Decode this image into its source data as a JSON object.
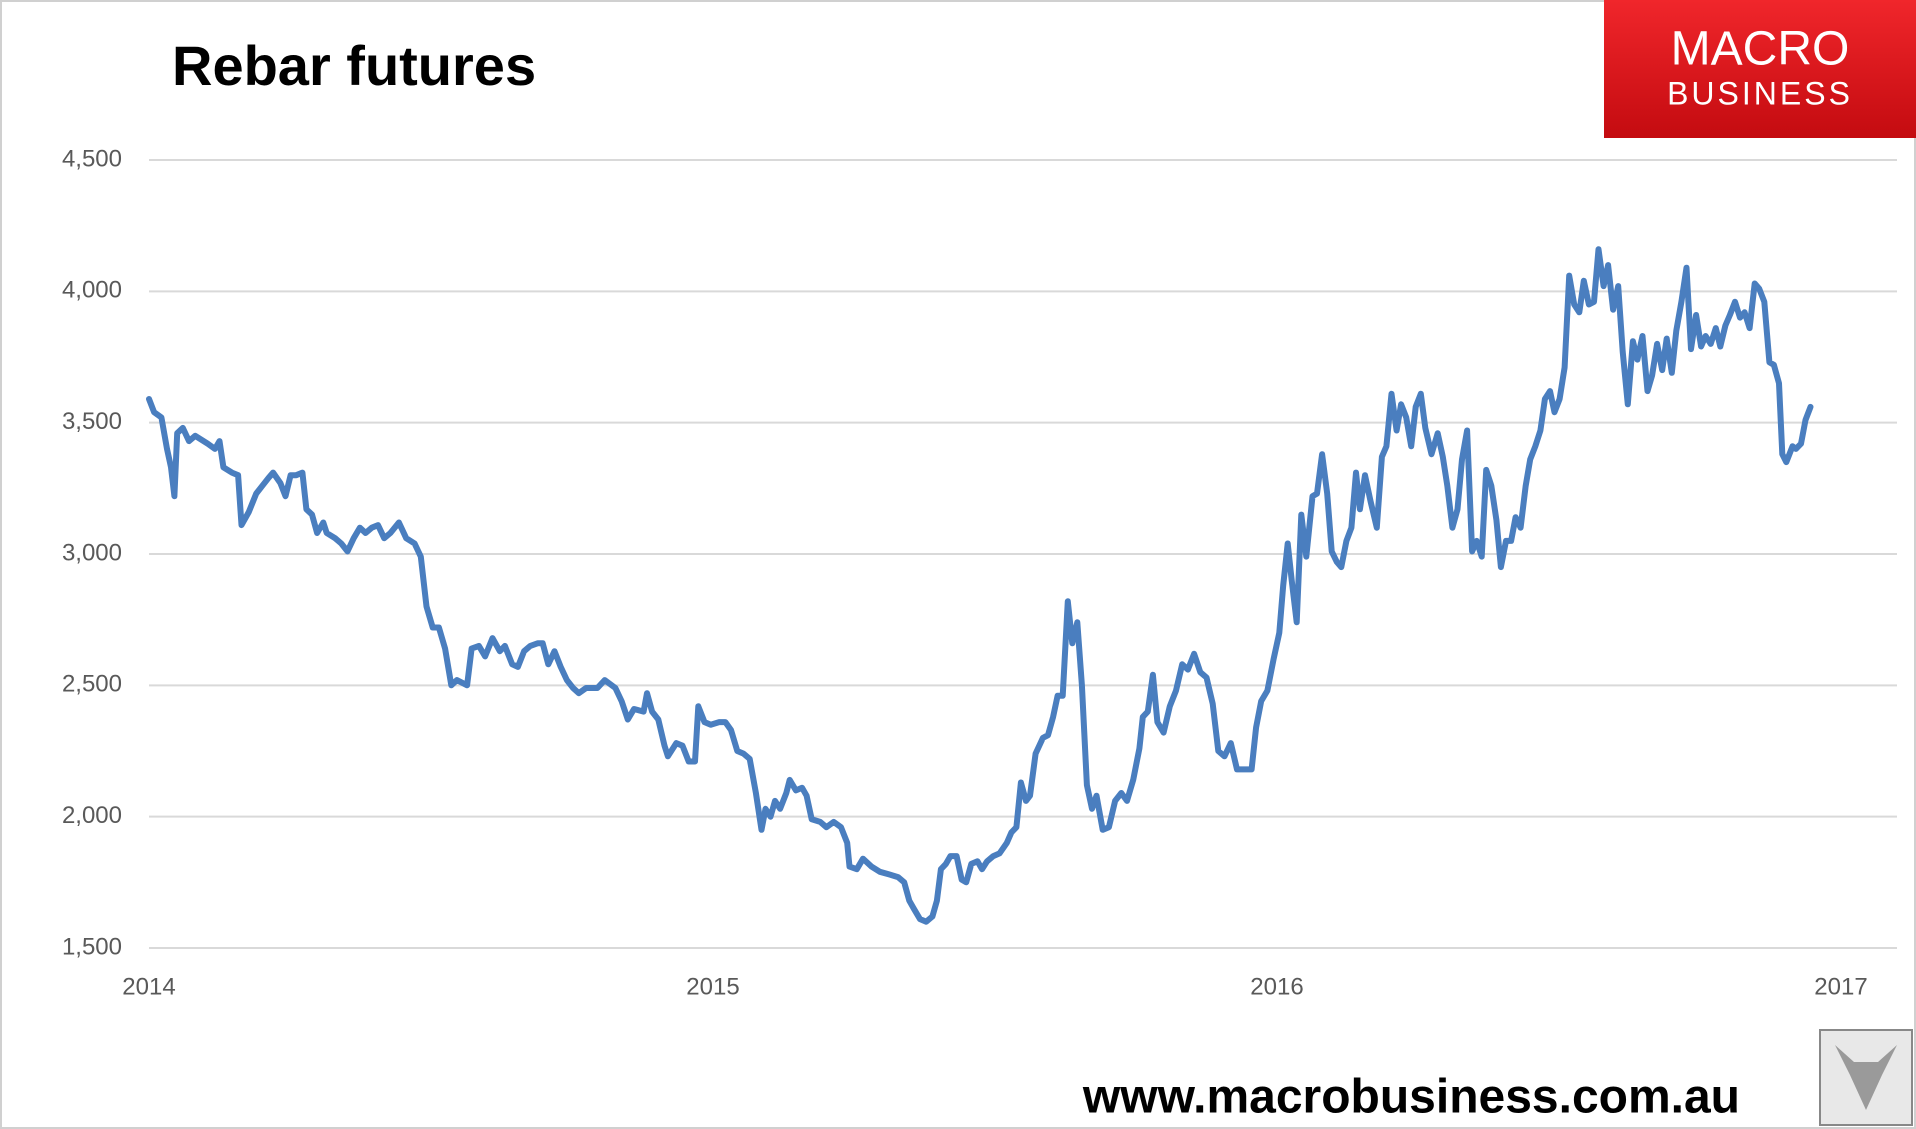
{
  "chart_data": {
    "type": "line",
    "title": "Rebar futures",
    "x": [
      2014,
      2014.009,
      2014.022,
      2014.032,
      2014.039,
      2014.045,
      2014.05,
      2014.06,
      2014.071,
      2014.082,
      2014.104,
      2014.117,
      2014.125,
      2014.132,
      2014.147,
      2014.158,
      2014.164,
      2014.177,
      2014.19,
      2014.201,
      2014.212,
      2014.22,
      2014.233,
      2014.242,
      2014.251,
      2014.261,
      2014.272,
      2014.279,
      2014.289,
      2014.298,
      2014.309,
      2014.315,
      2014.33,
      2014.341,
      2014.352,
      2014.363,
      2014.374,
      2014.384,
      2014.395,
      2014.406,
      2014.417,
      2014.428,
      2014.443,
      2014.456,
      2014.471,
      2014.482,
      2014.492,
      2014.503,
      2014.514,
      2014.525,
      2014.536,
      2014.546,
      2014.564,
      2014.572,
      2014.585,
      2014.596,
      2014.609,
      2014.622,
      2014.631,
      2014.644,
      2014.654,
      2014.665,
      2014.676,
      2014.689,
      2014.698,
      2014.708,
      2014.719,
      2014.73,
      2014.741,
      2014.752,
      2014.762,
      2014.775,
      2014.795,
      2014.808,
      2014.827,
      2014.838,
      2014.849,
      2014.86,
      2014.877,
      2014.883,
      2014.892,
      2014.903,
      2014.914,
      2014.92,
      2014.935,
      2014.946,
      2014.957,
      2014.968,
      2014.974,
      2014.985,
      2014.996,
      2015.011,
      2015.022,
      2015.032,
      2015.043,
      2015.054,
      2015.065,
      2015.076,
      2015.086,
      2015.093,
      2015.102,
      2015.11,
      2015.119,
      2015.13,
      2015.136,
      2015.147,
      2015.158,
      2015.166,
      2015.175,
      2015.19,
      2015.201,
      2015.214,
      2015.227,
      2015.238,
      2015.242,
      2015.255,
      2015.266,
      2015.281,
      2015.296,
      2015.313,
      2015.328,
      2015.339,
      2015.348,
      2015.356,
      2015.367,
      2015.378,
      2015.389,
      2015.397,
      2015.404,
      2015.413,
      2015.421,
      2015.432,
      2015.441,
      2015.449,
      2015.458,
      2015.469,
      2015.477,
      2015.486,
      2015.497,
      2015.508,
      2015.521,
      2015.529,
      2015.538,
      2015.546,
      2015.555,
      2015.562,
      2015.572,
      2015.585,
      2015.594,
      2015.603,
      2015.611,
      2015.62,
      2015.629,
      2015.637,
      2015.646,
      2015.654,
      2015.663,
      2015.672,
      2015.68,
      2015.691,
      2015.702,
      2015.713,
      2015.724,
      2015.734,
      2015.745,
      2015.756,
      2015.762,
      2015.771,
      2015.78,
      2015.788,
      2015.799,
      2015.81,
      2015.821,
      2015.832,
      2015.842,
      2015.853,
      2015.864,
      2015.875,
      2015.886,
      2015.896,
      2015.907,
      2015.918,
      2015.929,
      2015.94,
      2015.955,
      2015.963,
      2015.972,
      2015.983,
      2015.994,
      2016.004,
      2016.011,
      2016.019,
      2016.026,
      2016.035,
      2016.043,
      2016.052,
      2016.063,
      2016.071,
      2016.08,
      2016.089,
      2016.097,
      2016.106,
      2016.114,
      2016.123,
      2016.132,
      2016.14,
      2016.147,
      2016.156,
      2016.166,
      2016.177,
      2016.186,
      2016.194,
      2016.203,
      2016.212,
      2016.22,
      2016.229,
      2016.238,
      2016.246,
      2016.255,
      2016.263,
      2016.274,
      2016.285,
      2016.294,
      2016.302,
      2016.311,
      2016.32,
      2016.328,
      2016.337,
      2016.346,
      2016.354,
      2016.363,
      2016.371,
      2016.38,
      2016.389,
      2016.397,
      2016.406,
      2016.415,
      2016.423,
      2016.432,
      2016.441,
      2016.449,
      2016.458,
      2016.467,
      2016.475,
      2016.484,
      2016.492,
      2016.501,
      2016.51,
      2016.518,
      2016.527,
      2016.536,
      2016.544,
      2016.553,
      2016.562,
      2016.57,
      2016.579,
      2016.587,
      2016.596,
      2016.605,
      2016.613,
      2016.622,
      2016.631,
      2016.639,
      2016.648,
      2016.657,
      2016.665,
      2016.674,
      2016.683,
      2016.691,
      2016.7,
      2016.708,
      2016.717,
      2016.726,
      2016.734,
      2016.743,
      2016.752,
      2016.76,
      2016.769,
      2016.778,
      2016.786,
      2016.795,
      2016.803,
      2016.812,
      2016.821,
      2016.829,
      2016.838,
      2016.847,
      2016.855,
      2016.864,
      2016.873,
      2016.881,
      2016.89,
      2016.896,
      2016.903,
      2016.914,
      2016.92,
      2016.929,
      2016.937,
      2016.946
    ],
    "series": [
      {
        "color": "#4a7ebf",
        "values": [
          3590,
          3540,
          3520,
          3400,
          3330,
          3220,
          3460,
          3480,
          3430,
          3450,
          3420,
          3400,
          3430,
          3330,
          3310,
          3300,
          3110,
          3160,
          3230,
          3260,
          3290,
          3310,
          3270,
          3220,
          3300,
          3300,
          3310,
          3170,
          3150,
          3080,
          3120,
          3080,
          3060,
          3040,
          3010,
          3060,
          3100,
          3080,
          3100,
          3110,
          3060,
          3080,
          3120,
          3060,
          3040,
          2990,
          2800,
          2720,
          2720,
          2640,
          2500,
          2520,
          2500,
          2640,
          2650,
          2610,
          2680,
          2630,
          2650,
          2580,
          2570,
          2630,
          2650,
          2660,
          2660,
          2580,
          2630,
          2570,
          2520,
          2490,
          2470,
          2490,
          2490,
          2520,
          2490,
          2440,
          2370,
          2410,
          2400,
          2470,
          2400,
          2370,
          2270,
          2230,
          2280,
          2270,
          2210,
          2210,
          2420,
          2360,
          2350,
          2360,
          2360,
          2330,
          2250,
          2240,
          2220,
          2090,
          1950,
          2030,
          2000,
          2060,
          2030,
          2090,
          2140,
          2100,
          2110,
          2080,
          1990,
          1980,
          1960,
          1980,
          1960,
          1900,
          1810,
          1800,
          1840,
          1810,
          1790,
          1780,
          1770,
          1750,
          1680,
          1650,
          1610,
          1600,
          1620,
          1680,
          1800,
          1820,
          1850,
          1850,
          1760,
          1750,
          1820,
          1830,
          1800,
          1830,
          1850,
          1860,
          1900,
          1940,
          1960,
          2130,
          2060,
          2080,
          2240,
          2300,
          2310,
          2380,
          2460,
          2460,
          2820,
          2660,
          2740,
          2500,
          2120,
          2030,
          2080,
          1950,
          1960,
          2060,
          2090,
          2060,
          2140,
          2260,
          2380,
          2400,
          2540,
          2360,
          2320,
          2420,
          2480,
          2580,
          2560,
          2620,
          2550,
          2530,
          2430,
          2250,
          2230,
          2280,
          2180,
          2180,
          2180,
          2340,
          2440,
          2480,
          2600,
          2700,
          2880,
          3040,
          2900,
          2740,
          3150,
          2990,
          3220,
          3230,
          3380,
          3230,
          3010,
          2970,
          2950,
          3050,
          3100,
          3310,
          3170,
          3300,
          3200,
          3100,
          3370,
          3410,
          3610,
          3470,
          3570,
          3520,
          3410,
          3560,
          3610,
          3480,
          3380,
          3460,
          3370,
          3260,
          3100,
          3170,
          3360,
          3470,
          3010,
          3050,
          2990,
          3320,
          3260,
          3130,
          2950,
          3050,
          3050,
          3140,
          3100,
          3260,
          3360,
          3410,
          3470,
          3590,
          3620,
          3540,
          3590,
          3710,
          4060,
          3950,
          3920,
          4040,
          3950,
          3960,
          4160,
          4020,
          4100,
          3930,
          4020,
          3770,
          3570,
          3810,
          3740,
          3830,
          3620,
          3680,
          3800,
          3700,
          3820,
          3690,
          3850,
          3960,
          4090,
          3780,
          3910,
          3790,
          3830,
          3800,
          3860,
          3790,
          3870,
          3910,
          3960,
          3900,
          3920,
          3860,
          4030,
          4010,
          3960,
          3730,
          3720,
          3650,
          3380,
          3350,
          3410,
          3400,
          3420,
          3510,
          3560
        ]
      }
    ],
    "xlim": [
      2014,
      2017
    ],
    "xticks": [
      2014,
      2015,
      2016,
      2017
    ],
    "ylim": [
      1500,
      4500
    ],
    "yticks": [
      {
        "value": 1500,
        "label": "1,500"
      },
      {
        "value": 2000,
        "label": "2,000"
      },
      {
        "value": 2500,
        "label": "2,500"
      },
      {
        "value": 3000,
        "label": "3,000"
      },
      {
        "value": 3500,
        "label": "3,500"
      },
      {
        "value": 4000,
        "label": "4,000"
      },
      {
        "value": 4500,
        "label": "4,500"
      }
    ],
    "grid": true
  },
  "logo": {
    "line1": "MACRO",
    "line2": "BUSINESS"
  },
  "footer": "www.macrobusiness.com.au"
}
